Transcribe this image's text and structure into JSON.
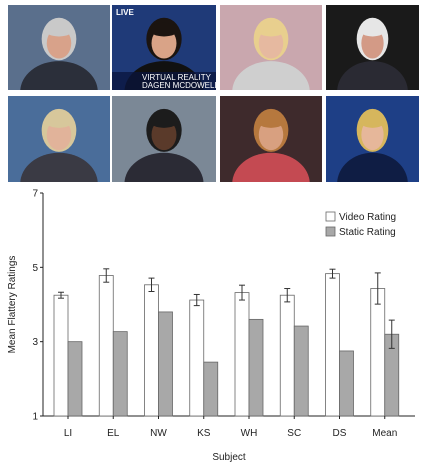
{
  "photos": [
    {
      "name": "photo-man-blue-backdrop",
      "bg": "#5a6f8c",
      "skin": "#d8a28a",
      "hair": "#c9c9c9",
      "suit": "#2b2f3a",
      "caption": "",
      "live": ""
    },
    {
      "name": "photo-woman-news-caption",
      "bg": "#1f3a78",
      "skin": "#d9a387",
      "hair": "#1b1410",
      "suit": "#111111",
      "caption_line1": "VIRTUAL REALITY",
      "caption_line2": "DAGEN MCDOWELL",
      "live": "LIVE"
    },
    {
      "name": "photo-blonde-woman-pink",
      "bg": "#c9a7ae",
      "skin": "#e6b9a0",
      "hair": "#e8cf8e",
      "suit": "#cfcfcf",
      "caption": "",
      "live": ""
    },
    {
      "name": "photo-man-dark-backdrop",
      "bg": "#1a1a1a",
      "skin": "#d39a86",
      "hair": "#e6e6e6",
      "suit": "#2a2a33",
      "caption": "",
      "live": ""
    },
    {
      "name": "photo-woman-blue-studio",
      "bg": "#4a6d9a",
      "skin": "#e1b39a",
      "hair": "#d7c79b",
      "suit": "#3a3a44",
      "caption": "",
      "live": ""
    },
    {
      "name": "photo-man-dark-skin",
      "bg": "#7b8896",
      "skin": "#5a3a2a",
      "hair": "#1c1c1c",
      "suit": "#2b2b35",
      "caption": "",
      "live": ""
    },
    {
      "name": "photo-woman-orchid",
      "bg": "#3e2a2c",
      "skin": "#d8a080",
      "hair": "#b6783e",
      "suit": "#c44a52",
      "caption": "",
      "live": ""
    },
    {
      "name": "photo-woman-news-anchor",
      "bg": "#1e3f86",
      "skin": "#e6b79a",
      "hair": "#d6b65d",
      "suit": "#0f1d44",
      "caption": "",
      "live": ""
    }
  ],
  "chart_data": {
    "type": "bar",
    "title": "",
    "xlabel": "Subject",
    "ylabel": "Mean Flattery Ratings",
    "ylim": [
      1,
      7
    ],
    "yticks": [
      "1",
      "3",
      "5",
      "7"
    ],
    "categories": [
      "LI",
      "EL",
      "NW",
      "KS",
      "WH",
      "SC",
      "DS",
      "Mean"
    ],
    "series": [
      {
        "name": "Video Rating",
        "color": "#ffffff",
        "values": [
          4.25,
          4.78,
          4.53,
          4.12,
          4.32,
          4.25,
          4.83,
          4.43
        ],
        "errors": [
          0.08,
          0.18,
          0.18,
          0.15,
          0.2,
          0.18,
          0.12,
          0.42
        ]
      },
      {
        "name": "Static Rating",
        "color": "#a8a8a8",
        "values": [
          3.0,
          3.27,
          3.8,
          2.45,
          3.6,
          3.42,
          2.75,
          3.2
        ],
        "errors": [
          0,
          0,
          0,
          0,
          0,
          0,
          0,
          0.38
        ]
      }
    ],
    "legend_position": "top-right",
    "grid": false
  }
}
